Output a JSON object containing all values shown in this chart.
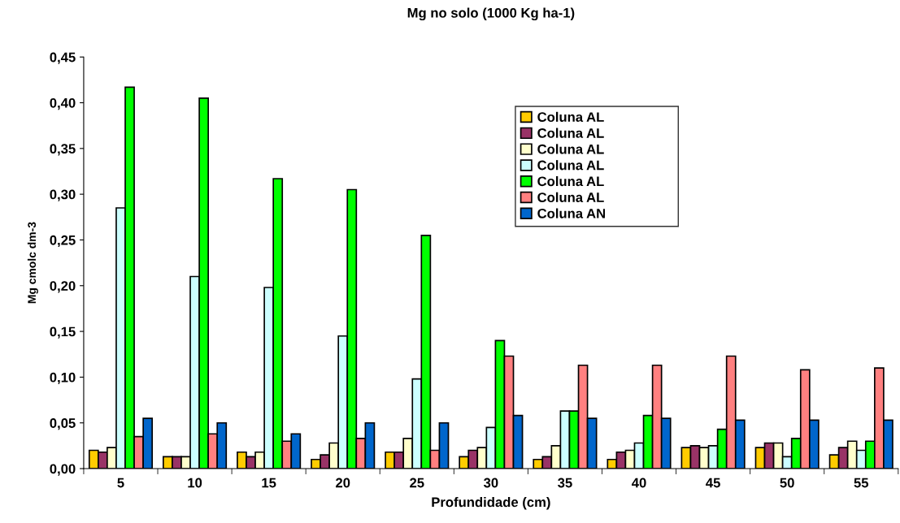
{
  "chart_data": {
    "type": "bar",
    "title": "Mg no solo (1000 Kg ha-1)",
    "xlabel": "Profundidade (cm)",
    "ylabel": "Mg cmolc dm-3",
    "categories": [
      "5",
      "10",
      "15",
      "20",
      "25",
      "30",
      "35",
      "40",
      "45",
      "50",
      "55"
    ],
    "series": [
      {
        "name": "Coluna AL",
        "color": "#ffcc00",
        "values": [
          0.02,
          0.013,
          0.018,
          0.01,
          0.018,
          0.013,
          0.01,
          0.01,
          0.023,
          0.023,
          0.015
        ]
      },
      {
        "name": "Coluna AL",
        "color": "#993366",
        "values": [
          0.018,
          0.013,
          0.013,
          0.015,
          0.018,
          0.02,
          0.013,
          0.018,
          0.025,
          0.028,
          0.023
        ]
      },
      {
        "name": "Coluna AL",
        "color": "#ffffcc",
        "values": [
          0.023,
          0.013,
          0.018,
          0.028,
          0.033,
          0.023,
          0.025,
          0.02,
          0.023,
          0.028,
          0.03
        ]
      },
      {
        "name": "Coluna AL",
        "color": "#ccffff",
        "values": [
          0.285,
          0.21,
          0.198,
          0.145,
          0.098,
          0.045,
          0.063,
          0.028,
          0.025,
          0.013,
          0.02
        ]
      },
      {
        "name": "Coluna AL",
        "color": "#00ff00",
        "values": [
          0.417,
          0.405,
          0.317,
          0.305,
          0.255,
          0.14,
          0.063,
          0.058,
          0.043,
          0.033,
          0.03
        ]
      },
      {
        "name": "Coluna AL",
        "color": "#ff8080",
        "values": [
          0.035,
          0.038,
          0.03,
          0.033,
          0.02,
          0.123,
          0.113,
          0.113,
          0.123,
          0.108,
          0.11
        ]
      },
      {
        "name": "Coluna AN",
        "color": "#0066cc",
        "values": [
          0.055,
          0.05,
          0.038,
          0.05,
          0.05,
          0.058,
          0.055,
          0.055,
          0.053,
          0.053,
          0.053
        ]
      }
    ],
    "ylim": [
      0,
      0.45
    ],
    "yticks": [
      {
        "value": 0,
        "label": "0,00"
      },
      {
        "value": 0.05,
        "label": "0,05"
      },
      {
        "value": 0.1,
        "label": "0,10"
      },
      {
        "value": 0.15,
        "label": "0,15"
      },
      {
        "value": 0.2,
        "label": "0,20"
      },
      {
        "value": 0.25,
        "label": "0,25"
      },
      {
        "value": 0.3,
        "label": "0,30"
      },
      {
        "value": 0.35,
        "label": "0,35"
      },
      {
        "value": 0.4,
        "label": "0,40"
      },
      {
        "value": 0.45,
        "label": "0,45"
      }
    ],
    "grid": false,
    "legend": "top right"
  }
}
